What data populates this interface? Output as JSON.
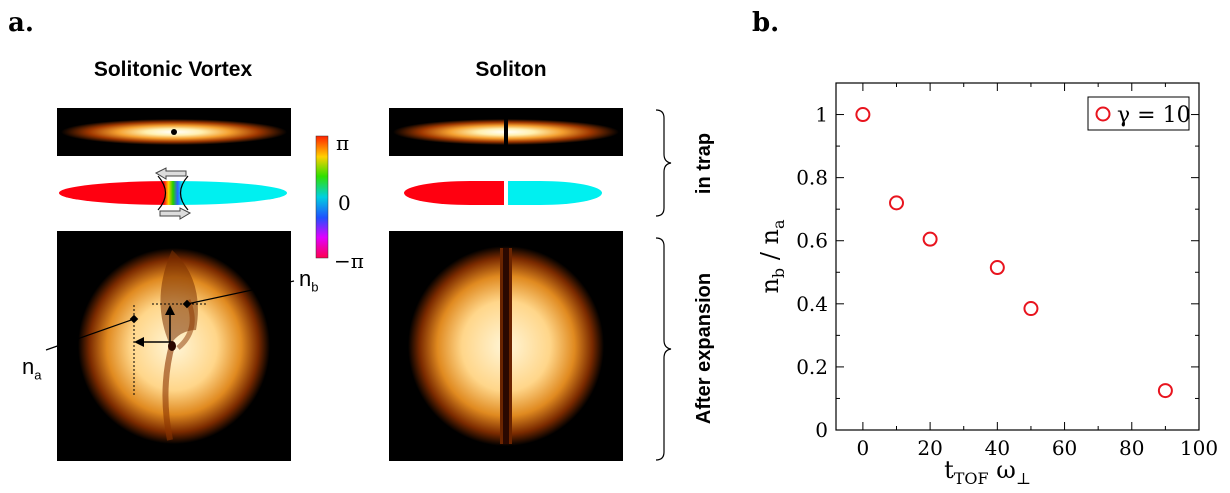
{
  "panel_a": {
    "label": "a.",
    "col1_title": "Solitonic Vortex",
    "col2_title": "Soliton",
    "colorbar_ticks": [
      "π",
      "0",
      "−π"
    ],
    "side_label_top": "in trap",
    "side_label_bottom": "After expansion",
    "annotation_na": "n",
    "annotation_na_sub": "a",
    "annotation_nb": "n",
    "annotation_nb_sub": "b"
  },
  "panel_b": {
    "label": "b."
  },
  "chart_data": {
    "type": "scatter",
    "title": "",
    "xlabel": "t",
    "xlabel_sub": "TOF",
    "xlabel_omega": "ω",
    "xlabel_omega_sub": "⊥",
    "ylabel": "n",
    "ylabel_sub1": "b",
    "ylabel_mid": " / n",
    "ylabel_sub2": "a",
    "xlim": [
      -8,
      100
    ],
    "ylim": [
      0,
      1.1
    ],
    "xticks": [
      0,
      20,
      40,
      60,
      80,
      100
    ],
    "yticks": [
      0,
      0.2,
      0.4,
      0.6,
      0.8,
      1
    ],
    "xtick_labels": [
      "0",
      "20",
      "40",
      "60",
      "80",
      "100"
    ],
    "ytick_labels": [
      "0",
      "0.2",
      "0.4",
      "0.6",
      "0.8",
      "1"
    ],
    "legend_position": "top-right",
    "grid": false,
    "series": [
      {
        "name": "γ = 10",
        "color": "#e8141e",
        "marker": "open-circle",
        "x": [
          0,
          10,
          20,
          40,
          50,
          90
        ],
        "y": [
          1.0,
          0.72,
          0.605,
          0.515,
          0.385,
          0.125
        ]
      }
    ]
  }
}
